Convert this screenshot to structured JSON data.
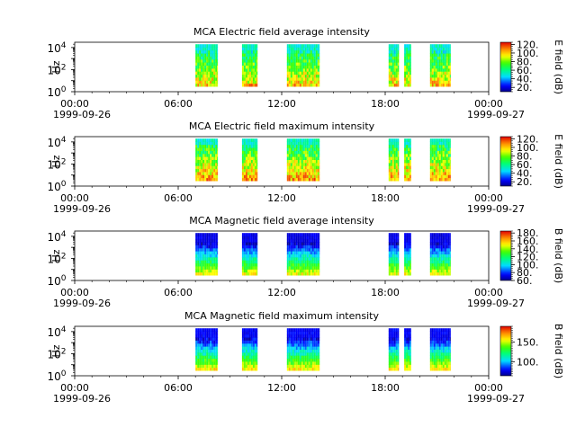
{
  "chart_data": [
    {
      "type": "heatmap",
      "title": "MCA  Electric field average intensity",
      "ylabel": "Hz",
      "y_scale": "log",
      "ylim": [
        1,
        30000
      ],
      "y_ticks": [
        {
          "value": 1,
          "base": "10",
          "exp": "0"
        },
        {
          "value": 100,
          "base": "10",
          "exp": "2"
        },
        {
          "value": 10000,
          "base": "10",
          "exp": "4"
        }
      ],
      "x_ticks": [
        {
          "hour": 0,
          "time": "00:00",
          "date": "1999-09-26"
        },
        {
          "hour": 6,
          "time": "06:00",
          "date": ""
        },
        {
          "hour": 12,
          "time": "12:00",
          "date": ""
        },
        {
          "hour": 18,
          "time": "18:00",
          "date": ""
        },
        {
          "hour": 24,
          "time": "00:00",
          "date": "1999-09-27"
        }
      ],
      "colorbar": {
        "label": "E field (dB)",
        "range": [
          10,
          125
        ],
        "ticks": [
          20,
          40,
          60,
          80,
          100,
          120
        ],
        "tick_labels": [
          "20.",
          "40.",
          "60.",
          "80.",
          "100.",
          "120."
        ],
        "colormap": "rainbow-blue-to-red"
      },
      "field": "electric",
      "stat": "average",
      "segments_hours": [
        [
          7.0,
          8.3
        ],
        [
          9.7,
          10.6
        ],
        [
          12.3,
          14.2
        ],
        [
          18.2,
          18.8
        ],
        [
          19.1,
          19.5
        ],
        [
          20.6,
          21.8
        ]
      ],
      "freq_range": [
        3,
        20000
      ]
    },
    {
      "type": "heatmap",
      "title": "MCA  Electric field maximum intensity",
      "ylabel": "Hz",
      "y_scale": "log",
      "ylim": [
        1,
        30000
      ],
      "y_ticks": [
        {
          "value": 1,
          "base": "10",
          "exp": "0"
        },
        {
          "value": 100,
          "base": "10",
          "exp": "2"
        },
        {
          "value": 10000,
          "base": "10",
          "exp": "4"
        }
      ],
      "x_ticks": [
        {
          "hour": 0,
          "time": "00:00",
          "date": "1999-09-26"
        },
        {
          "hour": 6,
          "time": "06:00",
          "date": ""
        },
        {
          "hour": 12,
          "time": "12:00",
          "date": ""
        },
        {
          "hour": 18,
          "time": "18:00",
          "date": ""
        },
        {
          "hour": 24,
          "time": "00:00",
          "date": "1999-09-27"
        }
      ],
      "colorbar": {
        "label": "E field (dB)",
        "range": [
          10,
          125
        ],
        "ticks": [
          20,
          40,
          60,
          80,
          100,
          120
        ],
        "tick_labels": [
          "20.",
          "40.",
          "60.",
          "80.",
          "100.",
          "120."
        ],
        "colormap": "rainbow-blue-to-red"
      },
      "field": "electric",
      "stat": "maximum",
      "segments_hours": [
        [
          7.0,
          8.3
        ],
        [
          9.7,
          10.6
        ],
        [
          12.3,
          14.2
        ],
        [
          18.2,
          18.8
        ],
        [
          19.1,
          19.5
        ],
        [
          20.6,
          21.8
        ]
      ],
      "freq_range": [
        3,
        20000
      ]
    },
    {
      "type": "heatmap",
      "title": "MCA  Magnetic field average intensity",
      "ylabel": "Hz",
      "y_scale": "log",
      "ylim": [
        1,
        30000
      ],
      "y_ticks": [
        {
          "value": 1,
          "base": "10",
          "exp": "0"
        },
        {
          "value": 100,
          "base": "10",
          "exp": "2"
        },
        {
          "value": 10000,
          "base": "10",
          "exp": "4"
        }
      ],
      "x_ticks": [
        {
          "hour": 0,
          "time": "00:00",
          "date": "1999-09-26"
        },
        {
          "hour": 6,
          "time": "06:00",
          "date": ""
        },
        {
          "hour": 12,
          "time": "12:00",
          "date": ""
        },
        {
          "hour": 18,
          "time": "18:00",
          "date": ""
        },
        {
          "hour": 24,
          "time": "00:00",
          "date": "1999-09-27"
        }
      ],
      "colorbar": {
        "label": "B field (dB)",
        "range": [
          60,
          185
        ],
        "ticks": [
          60,
          80,
          100,
          120,
          140,
          160,
          180
        ],
        "tick_labels": [
          "60.",
          "80.",
          "100.",
          "120.",
          "140.",
          "160.",
          "180."
        ],
        "colormap": "rainbow-blue-to-red"
      },
      "field": "magnetic",
      "stat": "average",
      "segments_hours": [
        [
          7.0,
          8.3
        ],
        [
          9.7,
          10.6
        ],
        [
          12.3,
          14.2
        ],
        [
          18.2,
          18.8
        ],
        [
          19.1,
          19.5
        ],
        [
          20.6,
          21.8
        ]
      ],
      "freq_range": [
        3,
        20000
      ]
    },
    {
      "type": "heatmap",
      "title": "MCA  Magnetic field maximum intensity",
      "ylabel": "Hz",
      "y_scale": "log",
      "ylim": [
        1,
        30000
      ],
      "y_ticks": [
        {
          "value": 1,
          "base": "10",
          "exp": "0"
        },
        {
          "value": 100,
          "base": "10",
          "exp": "2"
        },
        {
          "value": 10000,
          "base": "10",
          "exp": "4"
        }
      ],
      "x_ticks": [
        {
          "hour": 0,
          "time": "00:00",
          "date": "1999-09-26"
        },
        {
          "hour": 6,
          "time": "06:00",
          "date": ""
        },
        {
          "hour": 12,
          "time": "12:00",
          "date": ""
        },
        {
          "hour": 18,
          "time": "18:00",
          "date": ""
        },
        {
          "hour": 24,
          "time": "00:00",
          "date": "1999-09-27"
        }
      ],
      "colorbar": {
        "label": "B field (dB)",
        "range": [
          65,
          190
        ],
        "ticks": [
          100,
          150
        ],
        "tick_labels": [
          "100.",
          "150."
        ],
        "colormap": "rainbow-blue-to-red"
      },
      "field": "magnetic",
      "stat": "maximum",
      "segments_hours": [
        [
          7.0,
          8.3
        ],
        [
          9.7,
          10.6
        ],
        [
          12.3,
          14.2
        ],
        [
          18.2,
          18.8
        ],
        [
          19.1,
          19.5
        ],
        [
          20.6,
          21.8
        ]
      ],
      "freq_range": [
        3,
        20000
      ]
    }
  ]
}
